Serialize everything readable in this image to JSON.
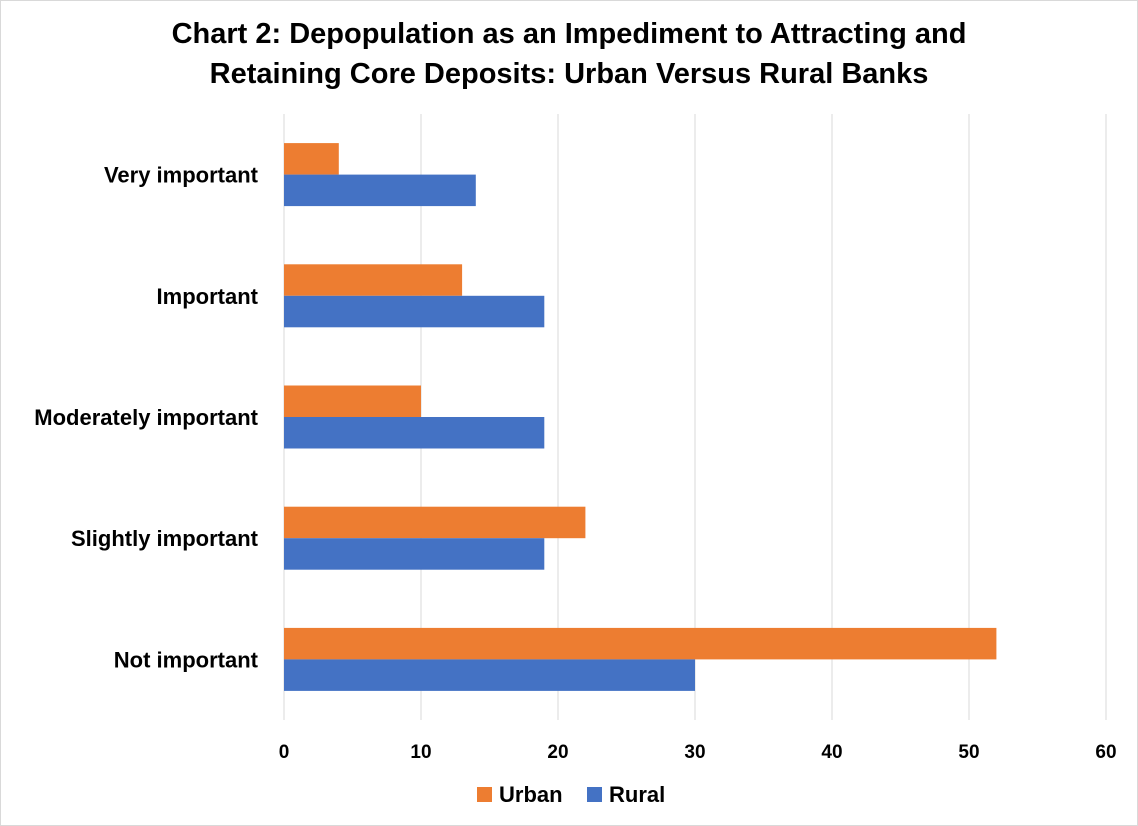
{
  "chart_data": {
    "type": "bar",
    "orientation": "horizontal",
    "title_lines": [
      "Chart 2: Depopulation as an Impediment to Attracting and",
      "Retaining Core Deposits: Urban Versus Rural Banks"
    ],
    "categories": [
      "Very important",
      "Important",
      "Moderately important",
      "Slightly important",
      "Not important"
    ],
    "series": [
      {
        "name": "Urban",
        "color": "#ED7D31",
        "values": [
          4,
          13,
          10,
          22,
          52
        ]
      },
      {
        "name": "Rural",
        "color": "#4472C4",
        "values": [
          14,
          19,
          19,
          19,
          30
        ]
      }
    ],
    "xlim": [
      0,
      60
    ],
    "xticks": [
      0,
      10,
      20,
      30,
      40,
      50,
      60
    ],
    "grid": true,
    "gridline_color": "#d9d9d9",
    "legend_position": "bottom"
  }
}
